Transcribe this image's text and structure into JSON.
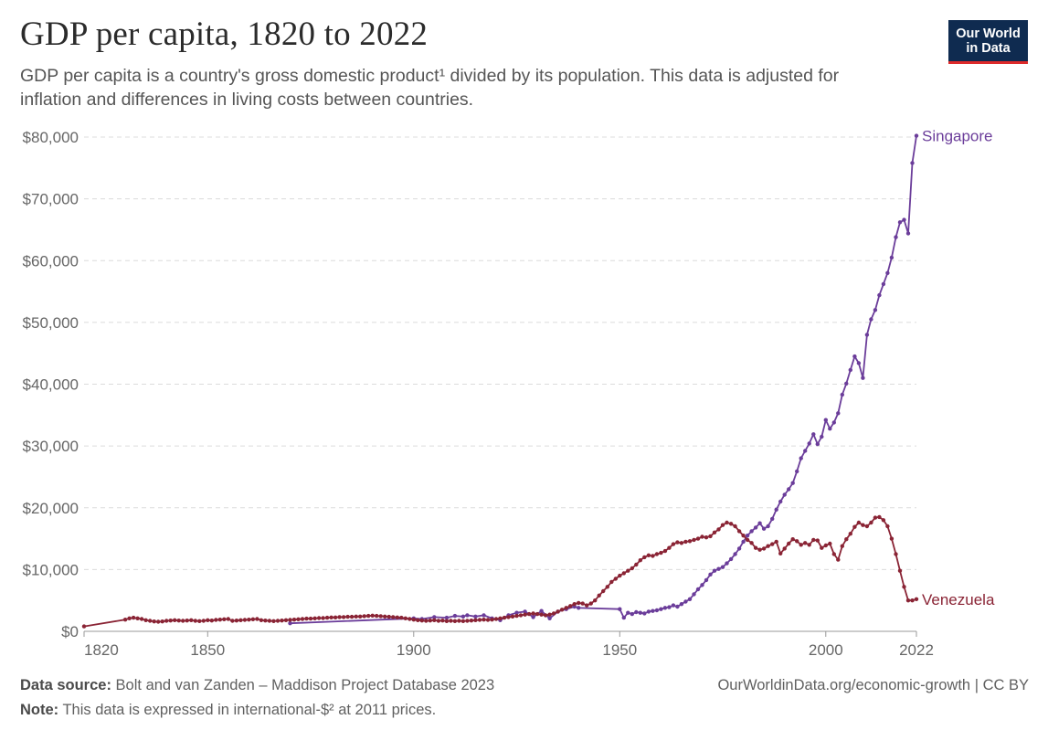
{
  "header": {
    "title": "GDP per capita, 1820 to 2022",
    "subtitle_line1": "GDP per capita is a country's gross domestic product¹ divided by its population. This data is adjusted for",
    "subtitle_line2": "inflation and differences in living costs between countries."
  },
  "logo": {
    "line1": "Our World",
    "line2": "in Data"
  },
  "footer": {
    "source_label": "Data source:",
    "source_text": "Bolt and van Zanden – Maddison Project Database 2023",
    "note_label": "Note:",
    "note_text": "This data is expressed in international-$² at 2011 prices.",
    "link": "OurWorldinData.org/economic-growth | CC BY"
  },
  "chart_data": {
    "type": "line",
    "title": "GDP per capita, 1820 to 2022",
    "xlabel": "",
    "ylabel": "",
    "xlim": [
      1820,
      2022
    ],
    "ylim": [
      0,
      80000
    ],
    "grid": true,
    "x_ticks": [
      1820,
      1850,
      1900,
      1950,
      2000,
      2022
    ],
    "y_ticks": [
      0,
      10000,
      20000,
      30000,
      40000,
      50000,
      60000,
      70000,
      80000
    ],
    "y_tick_labels": [
      "$0",
      "$10,000",
      "$20,000",
      "$30,000",
      "$40,000",
      "$50,000",
      "$60,000",
      "$70,000",
      "$80,000"
    ],
    "series": [
      {
        "name": "Singapore",
        "color": "#6b3d9a",
        "points": [
          [
            1870,
            1300
          ],
          [
            1900,
            2100
          ],
          [
            1902,
            2000
          ],
          [
            1905,
            2300
          ],
          [
            1908,
            2200
          ],
          [
            1910,
            2500
          ],
          [
            1912,
            2400
          ],
          [
            1913,
            2600
          ],
          [
            1915,
            2400
          ],
          [
            1917,
            2600
          ],
          [
            1919,
            2100
          ],
          [
            1921,
            1800
          ],
          [
            1923,
            2600
          ],
          [
            1925,
            3000
          ],
          [
            1927,
            3200
          ],
          [
            1929,
            2300
          ],
          [
            1931,
            3300
          ],
          [
            1933,
            2100
          ],
          [
            1935,
            3200
          ],
          [
            1937,
            3600
          ],
          [
            1939,
            4000
          ],
          [
            1940,
            3800
          ],
          [
            1950,
            3600
          ],
          [
            1951,
            2200
          ],
          [
            1952,
            3000
          ],
          [
            1953,
            2800
          ],
          [
            1954,
            3100
          ],
          [
            1955,
            3000
          ],
          [
            1956,
            2900
          ],
          [
            1957,
            3200
          ],
          [
            1958,
            3300
          ],
          [
            1959,
            3400
          ],
          [
            1960,
            3600
          ],
          [
            1961,
            3800
          ],
          [
            1962,
            3900
          ],
          [
            1963,
            4200
          ],
          [
            1964,
            4000
          ],
          [
            1965,
            4400
          ],
          [
            1966,
            4800
          ],
          [
            1967,
            5200
          ],
          [
            1968,
            6000
          ],
          [
            1969,
            6800
          ],
          [
            1970,
            7500
          ],
          [
            1971,
            8300
          ],
          [
            1972,
            9200
          ],
          [
            1973,
            9800
          ],
          [
            1974,
            10100
          ],
          [
            1975,
            10400
          ],
          [
            1976,
            11000
          ],
          [
            1977,
            11700
          ],
          [
            1978,
            12500
          ],
          [
            1979,
            13400
          ],
          [
            1980,
            14500
          ],
          [
            1981,
            15500
          ],
          [
            1982,
            16200
          ],
          [
            1983,
            16800
          ],
          [
            1984,
            17500
          ],
          [
            1985,
            16600
          ],
          [
            1986,
            17000
          ],
          [
            1987,
            18200
          ],
          [
            1988,
            19700
          ],
          [
            1989,
            21000
          ],
          [
            1990,
            22100
          ],
          [
            1991,
            23000
          ],
          [
            1992,
            24000
          ],
          [
            1993,
            25900
          ],
          [
            1994,
            28000
          ],
          [
            1995,
            29200
          ],
          [
            1996,
            30400
          ],
          [
            1997,
            31900
          ],
          [
            1998,
            30300
          ],
          [
            1999,
            31500
          ],
          [
            2000,
            34200
          ],
          [
            2001,
            32800
          ],
          [
            2002,
            33800
          ],
          [
            2003,
            35300
          ],
          [
            2004,
            38300
          ],
          [
            2005,
            40100
          ],
          [
            2006,
            42300
          ],
          [
            2007,
            44500
          ],
          [
            2008,
            43400
          ],
          [
            2009,
            41000
          ],
          [
            2010,
            48000
          ],
          [
            2011,
            50500
          ],
          [
            2012,
            52000
          ],
          [
            2013,
            54400
          ],
          [
            2014,
            56200
          ],
          [
            2015,
            58000
          ],
          [
            2016,
            60500
          ],
          [
            2017,
            63800
          ],
          [
            2018,
            66200
          ],
          [
            2019,
            66600
          ],
          [
            2020,
            64400
          ],
          [
            2021,
            75800
          ],
          [
            2022,
            80200
          ]
        ]
      },
      {
        "name": "Venezuela",
        "color": "#8a2435",
        "points": [
          [
            1820,
            800
          ],
          [
            1830,
            1900
          ],
          [
            1831,
            2100
          ],
          [
            1832,
            2200
          ],
          [
            1833,
            2100
          ],
          [
            1834,
            2000
          ],
          [
            1835,
            1800
          ],
          [
            1836,
            1700
          ],
          [
            1837,
            1600
          ],
          [
            1838,
            1550
          ],
          [
            1839,
            1600
          ],
          [
            1840,
            1700
          ],
          [
            1841,
            1750
          ],
          [
            1842,
            1800
          ],
          [
            1843,
            1750
          ],
          [
            1844,
            1700
          ],
          [
            1845,
            1750
          ],
          [
            1846,
            1800
          ],
          [
            1847,
            1700
          ],
          [
            1848,
            1650
          ],
          [
            1849,
            1700
          ],
          [
            1850,
            1800
          ],
          [
            1851,
            1750
          ],
          [
            1852,
            1850
          ],
          [
            1853,
            1900
          ],
          [
            1854,
            1950
          ],
          [
            1855,
            2000
          ],
          [
            1856,
            1700
          ],
          [
            1857,
            1750
          ],
          [
            1858,
            1800
          ],
          [
            1859,
            1850
          ],
          [
            1860,
            1900
          ],
          [
            1861,
            1950
          ],
          [
            1862,
            2000
          ],
          [
            1863,
            1800
          ],
          [
            1864,
            1750
          ],
          [
            1865,
            1700
          ],
          [
            1866,
            1650
          ],
          [
            1867,
            1700
          ],
          [
            1868,
            1750
          ],
          [
            1869,
            1800
          ],
          [
            1870,
            1850
          ],
          [
            1871,
            1900
          ],
          [
            1872,
            1950
          ],
          [
            1873,
            2000
          ],
          [
            1874,
            2050
          ],
          [
            1875,
            2050
          ],
          [
            1876,
            2100
          ],
          [
            1877,
            2150
          ],
          [
            1878,
            2150
          ],
          [
            1879,
            2200
          ],
          [
            1880,
            2250
          ],
          [
            1881,
            2250
          ],
          [
            1882,
            2300
          ],
          [
            1883,
            2300
          ],
          [
            1884,
            2350
          ],
          [
            1885,
            2350
          ],
          [
            1886,
            2400
          ],
          [
            1887,
            2400
          ],
          [
            1888,
            2450
          ],
          [
            1889,
            2500
          ],
          [
            1890,
            2550
          ],
          [
            1891,
            2500
          ],
          [
            1892,
            2450
          ],
          [
            1893,
            2400
          ],
          [
            1894,
            2350
          ],
          [
            1895,
            2300
          ],
          [
            1896,
            2250
          ],
          [
            1897,
            2200
          ],
          [
            1898,
            2100
          ],
          [
            1899,
            2000
          ],
          [
            1900,
            1900
          ],
          [
            1901,
            1800
          ],
          [
            1902,
            1750
          ],
          [
            1903,
            1700
          ],
          [
            1904,
            1750
          ],
          [
            1905,
            1800
          ],
          [
            1906,
            1700
          ],
          [
            1907,
            1750
          ],
          [
            1908,
            1650
          ],
          [
            1909,
            1700
          ],
          [
            1910,
            1650
          ],
          [
            1911,
            1700
          ],
          [
            1912,
            1650
          ],
          [
            1913,
            1700
          ],
          [
            1914,
            1750
          ],
          [
            1915,
            1800
          ],
          [
            1916,
            1850
          ],
          [
            1917,
            1900
          ],
          [
            1918,
            1850
          ],
          [
            1919,
            1900
          ],
          [
            1920,
            2000
          ],
          [
            1921,
            2100
          ],
          [
            1922,
            2200
          ],
          [
            1923,
            2300
          ],
          [
            1924,
            2400
          ],
          [
            1925,
            2500
          ],
          [
            1926,
            2600
          ],
          [
            1927,
            2700
          ],
          [
            1928,
            2800
          ],
          [
            1929,
            2900
          ],
          [
            1930,
            2800
          ],
          [
            1931,
            2700
          ],
          [
            1932,
            2600
          ],
          [
            1933,
            2700
          ],
          [
            1934,
            2900
          ],
          [
            1935,
            3200
          ],
          [
            1936,
            3500
          ],
          [
            1937,
            3800
          ],
          [
            1938,
            4100
          ],
          [
            1939,
            4400
          ],
          [
            1940,
            4600
          ],
          [
            1941,
            4500
          ],
          [
            1942,
            4200
          ],
          [
            1943,
            4500
          ],
          [
            1944,
            5000
          ],
          [
            1945,
            5800
          ],
          [
            1946,
            6500
          ],
          [
            1947,
            7200
          ],
          [
            1948,
            8000
          ],
          [
            1949,
            8500
          ],
          [
            1950,
            9000
          ],
          [
            1951,
            9400
          ],
          [
            1952,
            9800
          ],
          [
            1953,
            10200
          ],
          [
            1954,
            10800
          ],
          [
            1955,
            11500
          ],
          [
            1956,
            12000
          ],
          [
            1957,
            12300
          ],
          [
            1958,
            12200
          ],
          [
            1959,
            12500
          ],
          [
            1960,
            12700
          ],
          [
            1961,
            13000
          ],
          [
            1962,
            13500
          ],
          [
            1963,
            14100
          ],
          [
            1964,
            14400
          ],
          [
            1965,
            14300
          ],
          [
            1966,
            14500
          ],
          [
            1967,
            14600
          ],
          [
            1968,
            14800
          ],
          [
            1969,
            15000
          ],
          [
            1970,
            15300
          ],
          [
            1971,
            15200
          ],
          [
            1972,
            15400
          ],
          [
            1973,
            16000
          ],
          [
            1974,
            16500
          ],
          [
            1975,
            17200
          ],
          [
            1976,
            17600
          ],
          [
            1977,
            17400
          ],
          [
            1978,
            17000
          ],
          [
            1979,
            16200
          ],
          [
            1980,
            15500
          ],
          [
            1981,
            14800
          ],
          [
            1982,
            14300
          ],
          [
            1983,
            13500
          ],
          [
            1984,
            13200
          ],
          [
            1985,
            13400
          ],
          [
            1986,
            13800
          ],
          [
            1987,
            14100
          ],
          [
            1988,
            14500
          ],
          [
            1989,
            12600
          ],
          [
            1990,
            13400
          ],
          [
            1991,
            14200
          ],
          [
            1992,
            14900
          ],
          [
            1993,
            14600
          ],
          [
            1994,
            14000
          ],
          [
            1995,
            14300
          ],
          [
            1996,
            14000
          ],
          [
            1997,
            14800
          ],
          [
            1998,
            14700
          ],
          [
            1999,
            13500
          ],
          [
            2000,
            13900
          ],
          [
            2001,
            14200
          ],
          [
            2002,
            12500
          ],
          [
            2003,
            11600
          ],
          [
            2004,
            13800
          ],
          [
            2005,
            14900
          ],
          [
            2006,
            15800
          ],
          [
            2007,
            16900
          ],
          [
            2008,
            17600
          ],
          [
            2009,
            17200
          ],
          [
            2010,
            17000
          ],
          [
            2011,
            17600
          ],
          [
            2012,
            18400
          ],
          [
            2013,
            18500
          ],
          [
            2014,
            18000
          ],
          [
            2015,
            17000
          ],
          [
            2016,
            15000
          ],
          [
            2017,
            12500
          ],
          [
            2018,
            9800
          ],
          [
            2019,
            7200
          ],
          [
            2020,
            5000
          ],
          [
            2021,
            5000
          ],
          [
            2022,
            5200
          ]
        ]
      }
    ]
  }
}
